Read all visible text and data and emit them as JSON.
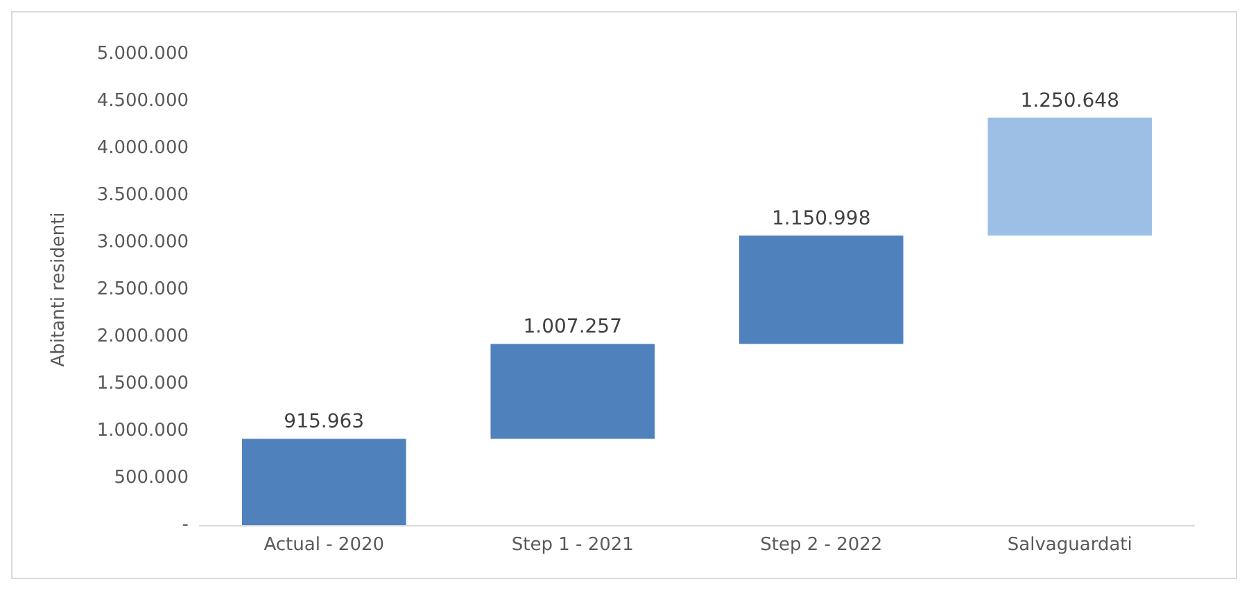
{
  "chart_data": {
    "type": "bar",
    "ylabel": "Abitanti residenti",
    "categories": [
      "Actual - 2020",
      "Step 1 - 2021",
      "Step 2 - 2022",
      "Salvaguardati"
    ],
    "values": [
      915963,
      1007257,
      1150998,
      1250648
    ],
    "base": [
      0,
      915963,
      1923220,
      3074218
    ],
    "colors": [
      "#4f81bd",
      "#4f81bd",
      "#4f81bd",
      "#9dbfe6"
    ],
    "value_labels": [
      "915.963",
      "1.007.257",
      "1.150.998",
      "1.250.648"
    ],
    "ylim": [
      0,
      5000000
    ],
    "yticks": [
      {
        "value": 0,
        "label": "-"
      },
      {
        "value": 500000,
        "label": "500.000"
      },
      {
        "value": 1000000,
        "label": "1.000.000"
      },
      {
        "value": 1500000,
        "label": "1.500.000"
      },
      {
        "value": 2000000,
        "label": "2.000.000"
      },
      {
        "value": 2500000,
        "label": "2.500.000"
      },
      {
        "value": 3000000,
        "label": "3.000.000"
      },
      {
        "value": 3500000,
        "label": "3.500.000"
      },
      {
        "value": 4000000,
        "label": "4.000.000"
      },
      {
        "value": 4500000,
        "label": "4.500.000"
      },
      {
        "value": 5000000,
        "label": "5.000.000"
      }
    ],
    "grid": false
  }
}
